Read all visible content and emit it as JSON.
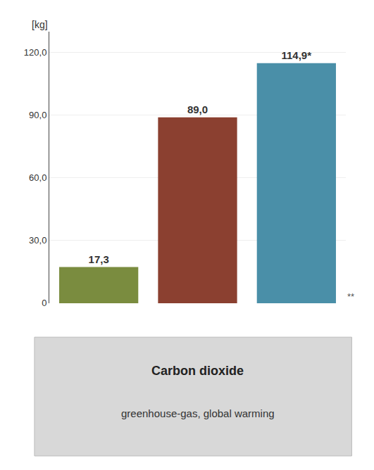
{
  "chart_data": {
    "type": "bar",
    "title": "Carbon dioxide",
    "subtitle": "greenhouse-gas, global warming",
    "ylabel": "[kg]",
    "categories": [
      null,
      null,
      null
    ],
    "values": [
      17.3,
      89.0,
      114.9
    ],
    "value_labels": [
      "17,3",
      "89,0",
      "114,9*"
    ],
    "data_labels": true,
    "colors": [
      "#7a8c3f",
      "#8b4030",
      "#4a8fa8"
    ],
    "ylim": [
      0,
      130
    ],
    "yticks": [
      0,
      {
        "value": 30.0,
        "label": "30,0"
      },
      {
        "value": 60.0,
        "label": "60,0"
      },
      {
        "value": 90.0,
        "label": "90,0"
      },
      {
        "value": 120.0,
        "label": "120,0"
      }
    ],
    "grid": true,
    "tick_labels": "y",
    "annotations": [
      "**"
    ]
  }
}
